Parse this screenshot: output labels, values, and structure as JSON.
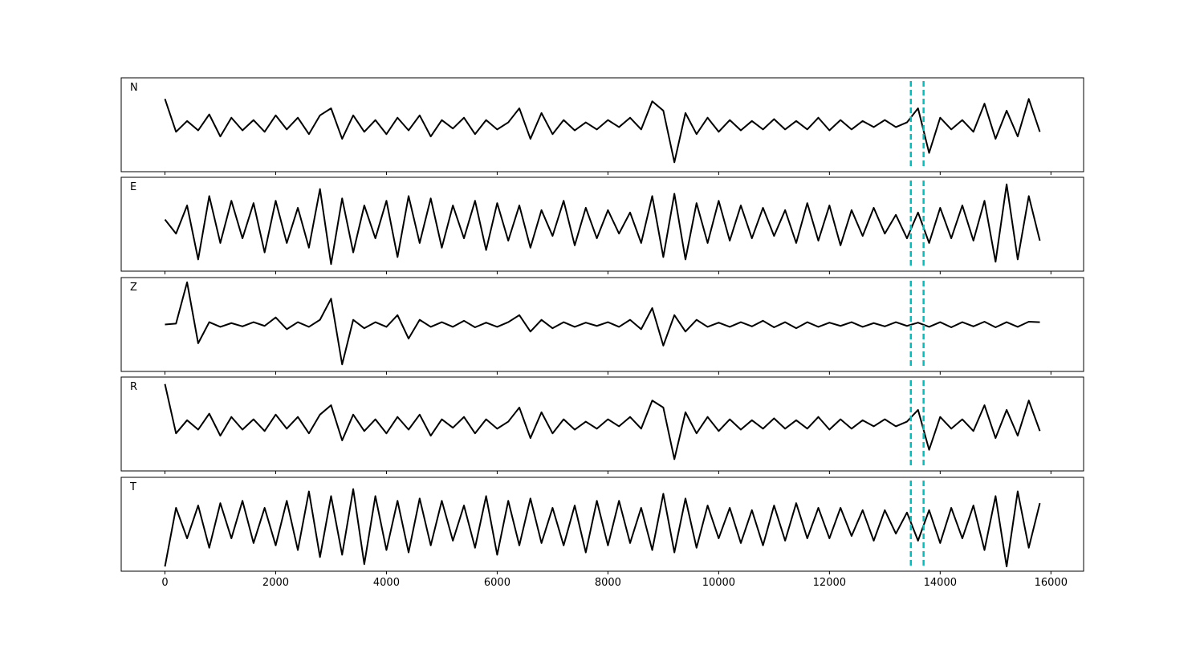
{
  "chart_data": {
    "type": "line",
    "x": [
      0,
      200,
      400,
      600,
      800,
      1000,
      1200,
      1400,
      1600,
      1800,
      2000,
      2200,
      2400,
      2600,
      2800,
      3000,
      3200,
      3400,
      3600,
      3800,
      4000,
      4200,
      4400,
      4600,
      4800,
      5000,
      5200,
      5400,
      5600,
      5800,
      6000,
      6200,
      6400,
      6600,
      6800,
      7000,
      7200,
      7400,
      7600,
      7800,
      8000,
      8200,
      8400,
      8600,
      8800,
      9000,
      9200,
      9400,
      9600,
      9800,
      10000,
      10200,
      10400,
      10600,
      10800,
      11000,
      11200,
      11400,
      11600,
      11800,
      12000,
      12200,
      12400,
      12600,
      12800,
      13000,
      13200,
      13400,
      13600,
      13800,
      14000,
      14200,
      14400,
      14600,
      14800,
      15000,
      15200,
      15400,
      15600,
      15800
    ],
    "xlim": [
      -790,
      16590
    ],
    "xticks": [
      0,
      2000,
      4000,
      6000,
      8000,
      10000,
      12000,
      14000,
      16000
    ],
    "ylim": [
      -1,
      1
    ],
    "series": [
      {
        "name": "N",
        "color": "#000000",
        "values": [
          0.55,
          -0.15,
          0.08,
          -0.12,
          0.22,
          -0.25,
          0.15,
          -0.12,
          0.1,
          -0.15,
          0.2,
          -0.1,
          0.15,
          -0.2,
          0.2,
          0.35,
          -0.3,
          0.2,
          -0.15,
          0.1,
          -0.2,
          0.15,
          -0.12,
          0.2,
          -0.25,
          0.1,
          -0.08,
          0.15,
          -0.2,
          0.1,
          -0.1,
          0.05,
          0.35,
          -0.3,
          0.25,
          -0.2,
          0.1,
          -0.12,
          0.05,
          -0.1,
          0.1,
          -0.05,
          0.15,
          -0.1,
          0.5,
          0.3,
          -0.8,
          0.25,
          -0.2,
          0.15,
          -0.15,
          0.1,
          -0.12,
          0.08,
          -0.1,
          0.12,
          -0.1,
          0.08,
          -0.1,
          0.15,
          -0.12,
          0.1,
          -0.1,
          0.08,
          -0.05,
          0.1,
          -0.05,
          0.05,
          0.35,
          -0.6,
          0.15,
          -0.1,
          0.1,
          -0.15,
          0.45,
          -0.3,
          0.3,
          -0.25,
          0.55,
          -0.15
        ]
      },
      {
        "name": "E",
        "color": "#000000",
        "values": [
          0.1,
          -0.2,
          0.4,
          -0.75,
          0.6,
          -0.4,
          0.5,
          -0.3,
          0.45,
          -0.6,
          0.5,
          -0.4,
          0.35,
          -0.5,
          0.75,
          -0.85,
          0.55,
          -0.6,
          0.4,
          -0.3,
          0.5,
          -0.7,
          0.6,
          -0.4,
          0.55,
          -0.5,
          0.4,
          -0.3,
          0.5,
          -0.55,
          0.45,
          -0.35,
          0.4,
          -0.5,
          0.3,
          -0.25,
          0.5,
          -0.45,
          0.35,
          -0.3,
          0.3,
          -0.2,
          0.25,
          -0.4,
          0.6,
          -0.7,
          0.65,
          -0.75,
          0.45,
          -0.4,
          0.5,
          -0.35,
          0.4,
          -0.3,
          0.35,
          -0.25,
          0.3,
          -0.4,
          0.45,
          -0.35,
          0.4,
          -0.45,
          0.3,
          -0.25,
          0.35,
          -0.2,
          0.2,
          -0.3,
          0.25,
          -0.4,
          0.35,
          -0.3,
          0.4,
          -0.35,
          0.5,
          -0.8,
          0.85,
          -0.75,
          0.6,
          -0.35
        ]
      },
      {
        "name": "Z",
        "color": "#000000",
        "values": [
          0.0,
          0.02,
          0.9,
          -0.4,
          0.05,
          -0.05,
          0.03,
          -0.04,
          0.05,
          -0.03,
          0.15,
          -0.1,
          0.05,
          -0.05,
          0.1,
          0.55,
          -0.85,
          0.1,
          -0.08,
          0.05,
          -0.05,
          0.2,
          -0.3,
          0.1,
          -0.05,
          0.05,
          -0.05,
          0.08,
          -0.06,
          0.04,
          -0.05,
          0.05,
          0.2,
          -0.15,
          0.1,
          -0.08,
          0.05,
          -0.05,
          0.04,
          -0.03,
          0.05,
          -0.05,
          0.1,
          -0.1,
          0.35,
          -0.45,
          0.2,
          -0.15,
          0.1,
          -0.05,
          0.04,
          -0.05,
          0.05,
          -0.04,
          0.08,
          -0.06,
          0.05,
          -0.08,
          0.05,
          -0.05,
          0.04,
          -0.03,
          0.05,
          -0.05,
          0.03,
          -0.04,
          0.05,
          -0.03,
          0.04,
          -0.05,
          0.05,
          -0.06,
          0.05,
          -0.04,
          0.06,
          -0.06,
          0.05,
          -0.05,
          0.06,
          0.05
        ]
      },
      {
        "name": "R",
        "color": "#000000",
        "values": [
          0.85,
          -0.2,
          0.08,
          -0.12,
          0.22,
          -0.25,
          0.15,
          -0.12,
          0.1,
          -0.15,
          0.2,
          -0.1,
          0.15,
          -0.2,
          0.2,
          0.4,
          -0.35,
          0.2,
          -0.15,
          0.1,
          -0.2,
          0.15,
          -0.12,
          0.2,
          -0.25,
          0.1,
          -0.08,
          0.15,
          -0.2,
          0.1,
          -0.1,
          0.05,
          0.35,
          -0.3,
          0.25,
          -0.2,
          0.1,
          -0.12,
          0.05,
          -0.1,
          0.1,
          -0.05,
          0.15,
          -0.1,
          0.5,
          0.35,
          -0.75,
          0.25,
          -0.2,
          0.15,
          -0.15,
          0.1,
          -0.12,
          0.08,
          -0.1,
          0.12,
          -0.1,
          0.08,
          -0.1,
          0.15,
          -0.12,
          0.1,
          -0.1,
          0.08,
          -0.05,
          0.1,
          -0.05,
          0.05,
          0.3,
          -0.55,
          0.15,
          -0.1,
          0.1,
          -0.15,
          0.4,
          -0.3,
          0.3,
          -0.25,
          0.5,
          -0.15
        ]
      },
      {
        "name": "T",
        "color": "#000000",
        "values": [
          -0.9,
          0.35,
          -0.3,
          0.4,
          -0.5,
          0.45,
          -0.3,
          0.5,
          -0.4,
          0.35,
          -0.45,
          0.5,
          -0.55,
          0.7,
          -0.7,
          0.6,
          -0.65,
          0.75,
          -0.85,
          0.6,
          -0.55,
          0.5,
          -0.6,
          0.55,
          -0.45,
          0.5,
          -0.35,
          0.4,
          -0.5,
          0.6,
          -0.65,
          0.5,
          -0.45,
          0.55,
          -0.4,
          0.35,
          -0.45,
          0.4,
          -0.6,
          0.5,
          -0.45,
          0.5,
          -0.4,
          0.35,
          -0.55,
          0.65,
          -0.6,
          0.55,
          -0.5,
          0.4,
          -0.3,
          0.35,
          -0.4,
          0.3,
          -0.45,
          0.4,
          -0.35,
          0.45,
          -0.3,
          0.35,
          -0.3,
          0.35,
          -0.25,
          0.3,
          -0.35,
          0.3,
          -0.2,
          0.25,
          -0.35,
          0.3,
          -0.4,
          0.35,
          -0.3,
          0.4,
          -0.55,
          0.6,
          -0.9,
          0.7,
          -0.5,
          0.45
        ]
      }
    ],
    "vlines": [
      13470,
      13700
    ],
    "vline_color": "#00bfbf"
  }
}
